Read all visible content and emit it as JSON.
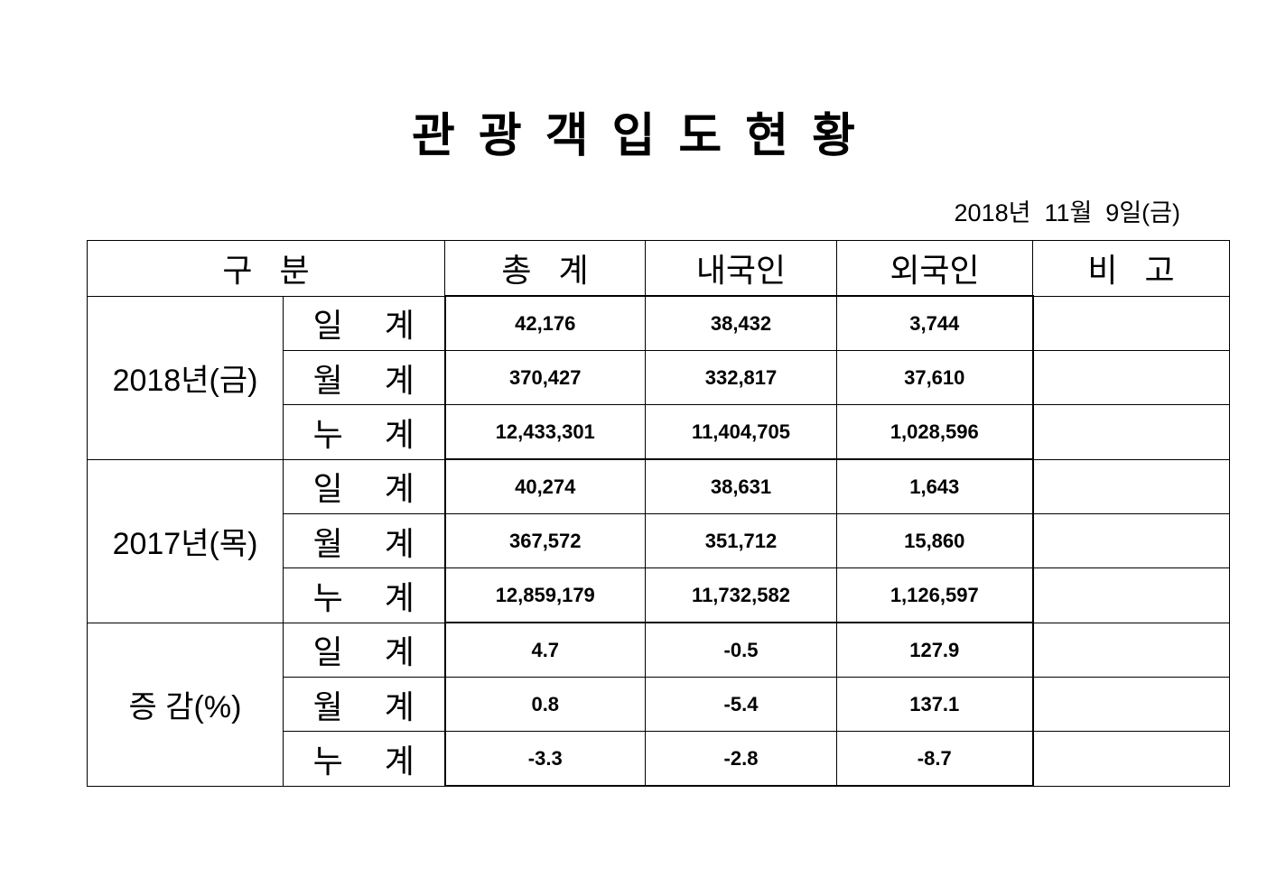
{
  "title": "관광객입도현황",
  "date": "2018년  11월  9일(금)",
  "header": {
    "category": "구   분",
    "total": "총   계",
    "domestic": "내국인",
    "foreign": "외국인",
    "note": "비   고"
  },
  "groups": [
    {
      "label": "2018년(금)",
      "rows": [
        {
          "label": "일 계",
          "total": "42,176",
          "domestic": "38,432",
          "foreign": "3,744",
          "note": ""
        },
        {
          "label": "월 계",
          "total": "370,427",
          "domestic": "332,817",
          "foreign": "37,610",
          "note": ""
        },
        {
          "label": "누 계",
          "total": "12,433,301",
          "domestic": "11,404,705",
          "foreign": "1,028,596",
          "note": ""
        }
      ]
    },
    {
      "label": "2017년(목)",
      "rows": [
        {
          "label": "일 계",
          "total": "40,274",
          "domestic": "38,631",
          "foreign": "1,643",
          "note": ""
        },
        {
          "label": "월 계",
          "total": "367,572",
          "domestic": "351,712",
          "foreign": "15,860",
          "note": ""
        },
        {
          "label": "누 계",
          "total": "12,859,179",
          "domestic": "11,732,582",
          "foreign": "1,126,597",
          "note": ""
        }
      ]
    },
    {
      "label": "증 감(%)",
      "rows": [
        {
          "label": "일 계",
          "total": "4.7",
          "domestic": "-0.5",
          "foreign": "127.9",
          "note": ""
        },
        {
          "label": "월 계",
          "total": "0.8",
          "domestic": "-5.4",
          "foreign": "137.1",
          "note": ""
        },
        {
          "label": "누 계",
          "total": "-3.3",
          "domestic": "-2.8",
          "foreign": "-8.7",
          "note": ""
        }
      ]
    }
  ]
}
